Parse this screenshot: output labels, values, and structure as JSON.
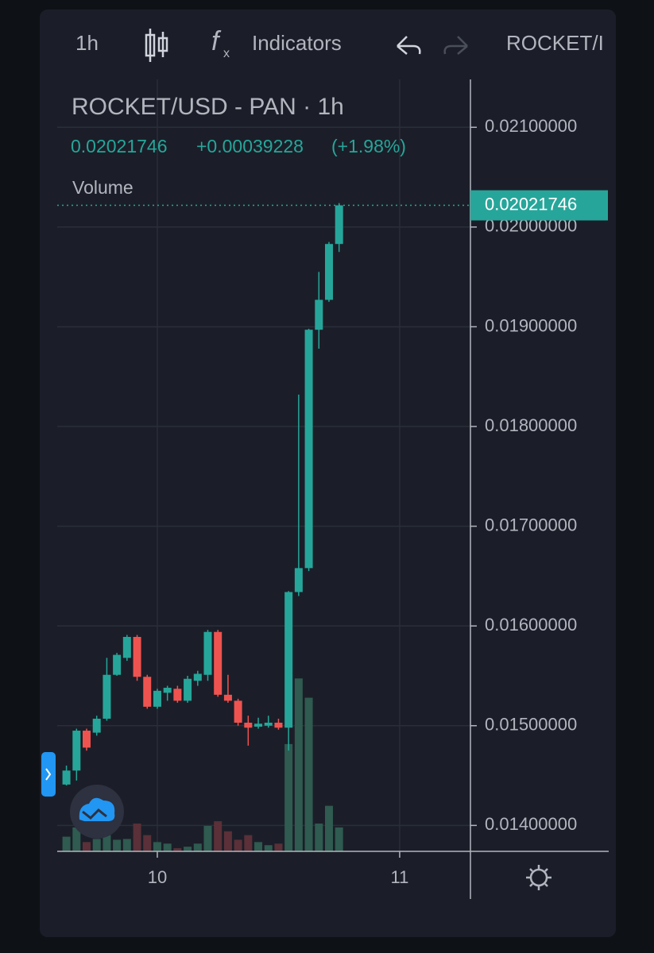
{
  "toolbar": {
    "interval": "1h",
    "indicators": "Indicators",
    "symbol": "ROCKET/I"
  },
  "chart_data": {
    "type": "candlestick",
    "title": "ROCKET/USD - PAN · 1h",
    "last_price": 0.02021746,
    "change": "+0.00039228",
    "change_percent": "(+1.98%)",
    "volume_label": "Volume",
    "up_color": "#26a69a",
    "down_color": "#ef5350",
    "x": [
      9.625,
      9.6667,
      9.7083,
      9.75,
      9.7917,
      9.8333,
      9.875,
      9.9167,
      9.9583,
      10,
      10.0417,
      10.0833,
      10.125,
      10.1667,
      10.2083,
      10.25,
      10.2917,
      10.3333,
      10.375,
      10.4167,
      10.4583,
      10.5,
      10.5417,
      10.5833,
      10.625,
      10.6667,
      10.7083,
      10.75
    ],
    "open": [
      0.01441,
      0.01455,
      0.01495,
      0.01493,
      0.01507,
      0.01551,
      0.01568,
      0.01589,
      0.01549,
      0.01519,
      0.01533,
      0.01537,
      0.01525,
      0.01545,
      0.01551,
      0.01594,
      0.01531,
      0.01525,
      0.01503,
      0.01499,
      0.015,
      0.01503,
      0.01498,
      0.01634,
      0.01658,
      0.01897,
      0.01927,
      0.01983
    ],
    "high": [
      0.0146,
      0.01497,
      0.01497,
      0.0151,
      0.01568,
      0.01573,
      0.01591,
      0.01591,
      0.01551,
      0.01537,
      0.0154,
      0.0154,
      0.0155,
      0.01555,
      0.01596,
      0.01596,
      0.01551,
      0.01527,
      0.0151,
      0.01508,
      0.0151,
      0.01507,
      0.01635,
      0.01832,
      0.01898,
      0.01955,
      0.01985,
      0.02024
    ],
    "low": [
      0.0144,
      0.01445,
      0.01475,
      0.0149,
      0.01505,
      0.0155,
      0.01565,
      0.01545,
      0.01517,
      0.01517,
      0.01525,
      0.01523,
      0.01523,
      0.0154,
      0.01545,
      0.01529,
      0.01523,
      0.015,
      0.0148,
      0.01497,
      0.01498,
      0.01496,
      0.01475,
      0.0163,
      0.01655,
      0.01878,
      0.01925,
      0.01975
    ],
    "close": [
      0.01455,
      0.01495,
      0.01478,
      0.01507,
      0.01551,
      0.01571,
      0.01589,
      0.01549,
      0.01519,
      0.01535,
      0.01538,
      0.01525,
      0.01547,
      0.01552,
      0.01594,
      0.01531,
      0.01525,
      0.01503,
      0.01498,
      0.01502,
      0.01503,
      0.01498,
      0.01634,
      0.01658,
      0.01897,
      0.01927,
      0.01983,
      0.02021746
    ],
    "volume": [
      1.9,
      3.1,
      1.2,
      1.6,
      2.1,
      1.5,
      1.6,
      3.6,
      2.1,
      1.2,
      1,
      0.4,
      0.6,
      1,
      3.3,
      3.9,
      2.6,
      1.5,
      2.1,
      1.2,
      0.8,
      1,
      13.9,
      22.4,
      19.9,
      3.6,
      5.9,
      3.1
    ],
    "volume_up_color": "#2f5b50",
    "volume_down_color": "#5b3038",
    "xlim": [
      9.587,
      11.292
    ],
    "xticks": [
      10,
      11
    ],
    "ylim": [
      0.01374,
      0.02148
    ],
    "yticks": [
      {
        "value": 0.014,
        "label": "0.01400000"
      },
      {
        "value": 0.015,
        "label": "0.01500000"
      },
      {
        "value": 0.016,
        "label": "0.01600000"
      },
      {
        "value": 0.017,
        "label": "0.01700000"
      },
      {
        "value": 0.018,
        "label": "0.01800000"
      },
      {
        "value": 0.019,
        "label": "0.01900000"
      },
      {
        "value": 0.02,
        "label": "0.02000000"
      },
      {
        "value": 0.021,
        "label": "0.02100000"
      }
    ],
    "y2lim": [
      0,
      100
    ],
    "grid": true
  }
}
